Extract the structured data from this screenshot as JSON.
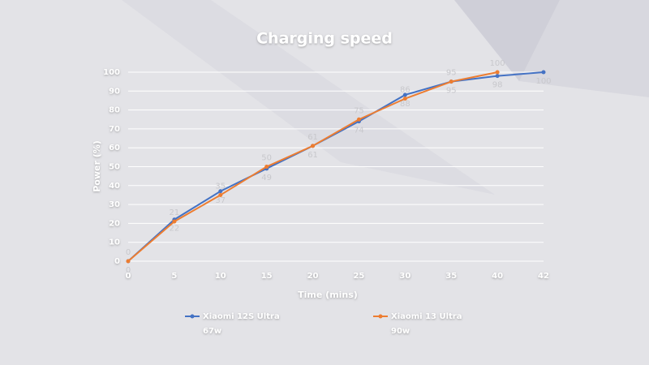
{
  "chart_data": {
    "type": "line",
    "title": "Charging speed",
    "x_label": "Time (mins)",
    "y_label": "Power (%)",
    "categories": [
      0,
      5,
      10,
      15,
      20,
      25,
      30,
      35,
      40,
      42
    ],
    "series": [
      {
        "name": "Xiaomi 12S Ultra",
        "sublabel": "67w",
        "color": "#4472c4",
        "values": [
          0,
          22,
          37,
          49,
          61,
          74,
          88,
          95,
          98,
          100
        ]
      },
      {
        "name": "Xiaomi 13 Ultra",
        "sublabel": "90w",
        "color": "#ed7d31",
        "values": [
          0,
          21,
          35,
          50,
          61,
          75,
          86,
          95,
          100,
          null
        ]
      }
    ],
    "ylim": [
      0,
      100
    ],
    "yticks": [
      0,
      10,
      20,
      30,
      40,
      50,
      60,
      70,
      80,
      90,
      100
    ],
    "grid": true
  }
}
